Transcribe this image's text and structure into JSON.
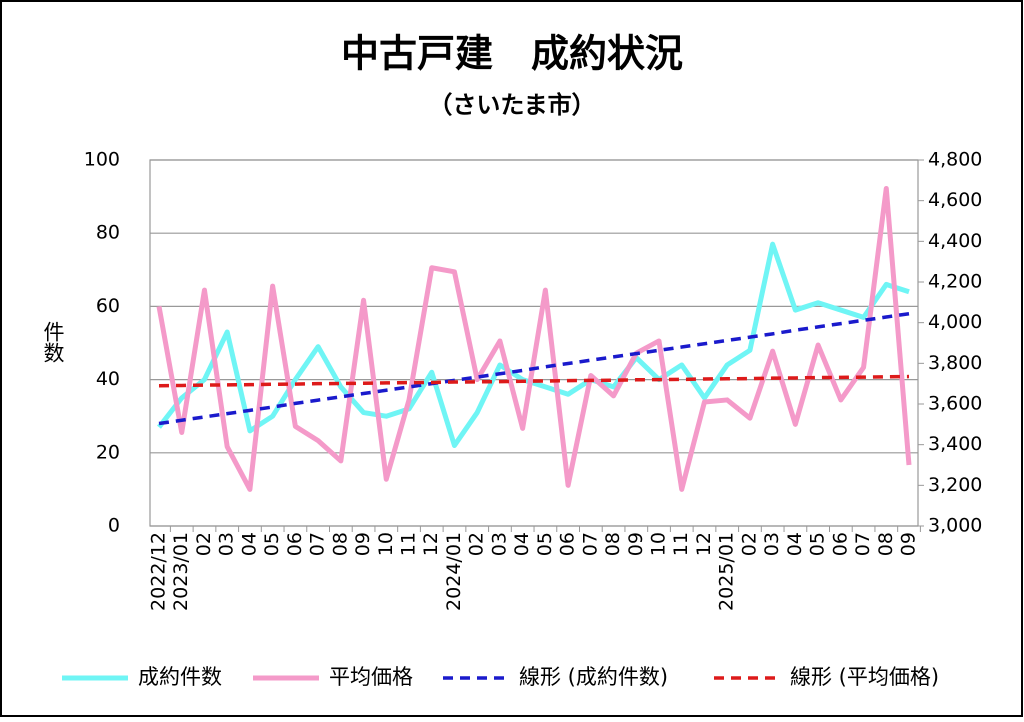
{
  "chart_data": {
    "type": "line",
    "title": "中古戸建　成約状況",
    "subtitle": "（さいたま市）",
    "ylabel": "件数",
    "categories": [
      "2022/12",
      "2023/01",
      "02",
      "03",
      "04",
      "05",
      "06",
      "07",
      "08",
      "09",
      "10",
      "11",
      "12",
      "2024/01",
      "02",
      "03",
      "04",
      "05",
      "06",
      "07",
      "08",
      "09",
      "10",
      "11",
      "12",
      "2025/01",
      "02",
      "03",
      "04",
      "05",
      "06",
      "07",
      "08",
      "09"
    ],
    "ylim": [
      0,
      100
    ],
    "yticks": [
      0,
      20,
      40,
      60,
      80,
      100
    ],
    "y2lim": [
      3000,
      4800
    ],
    "y2ticks": [
      {
        "value": 3000,
        "label": "3,000"
      },
      {
        "value": 3200,
        "label": "3,200"
      },
      {
        "value": 3400,
        "label": "3,400"
      },
      {
        "value": 3600,
        "label": "3,600"
      },
      {
        "value": 3800,
        "label": "3,800"
      },
      {
        "value": 4000,
        "label": "4,000"
      },
      {
        "value": 4200,
        "label": "4,200"
      },
      {
        "value": 4400,
        "label": "4,400"
      },
      {
        "value": 4600,
        "label": "4,600"
      },
      {
        "value": 4800,
        "label": "4,800"
      }
    ],
    "grid": true,
    "legend": "bottom",
    "series": [
      {
        "name": "成約件数",
        "color": "#6ff5f5",
        "axis": "y",
        "dash": false,
        "values": [
          27,
          35,
          40,
          53,
          26,
          30,
          40,
          49,
          38,
          31,
          30,
          32,
          42,
          22,
          31,
          44,
          40,
          38,
          36,
          40,
          38,
          46,
          40,
          44,
          35,
          44,
          48,
          77,
          59,
          61,
          59,
          57,
          66,
          64
        ]
      },
      {
        "name": "平均価格",
        "color": "#f49ac9",
        "axis": "y2",
        "dash": false,
        "values": [
          4080,
          3460,
          4160,
          3390,
          3180,
          4180,
          3490,
          3420,
          3320,
          4110,
          3230,
          3620,
          4270,
          4250,
          3720,
          3910,
          3480,
          4160,
          3200,
          3740,
          3640,
          3850,
          3910,
          3180,
          3610,
          3620,
          3530,
          3860,
          3500,
          3890,
          3620,
          3780,
          4660,
          3300
        ]
      },
      {
        "name": "線形 (成約件数)",
        "color": "#1a1acc",
        "axis": "y",
        "dash": true,
        "values": [
          28.0,
          28.9,
          29.8,
          30.7,
          31.6,
          32.5,
          33.5,
          34.4,
          35.3,
          36.2,
          37.1,
          38.0,
          38.9,
          39.8,
          40.7,
          41.6,
          42.5,
          43.5,
          44.4,
          45.3,
          46.2,
          47.1,
          48.0,
          48.9,
          49.8,
          50.7,
          51.6,
          52.5,
          53.5,
          54.4,
          55.3,
          56.2,
          57.1,
          58.0
        ]
      },
      {
        "name": "線形 (平均価格)",
        "color": "#dd1a1a",
        "axis": "y2",
        "dash": true,
        "values": [
          3690,
          3691,
          3693,
          3694,
          3695,
          3697,
          3698,
          3700,
          3701,
          3702,
          3704,
          3705,
          3706,
          3708,
          3709,
          3710,
          3712,
          3713,
          3715,
          3716,
          3717,
          3719,
          3720,
          3721,
          3723,
          3724,
          3725,
          3727,
          3728,
          3730,
          3731,
          3732,
          3734,
          3735
        ]
      }
    ]
  }
}
